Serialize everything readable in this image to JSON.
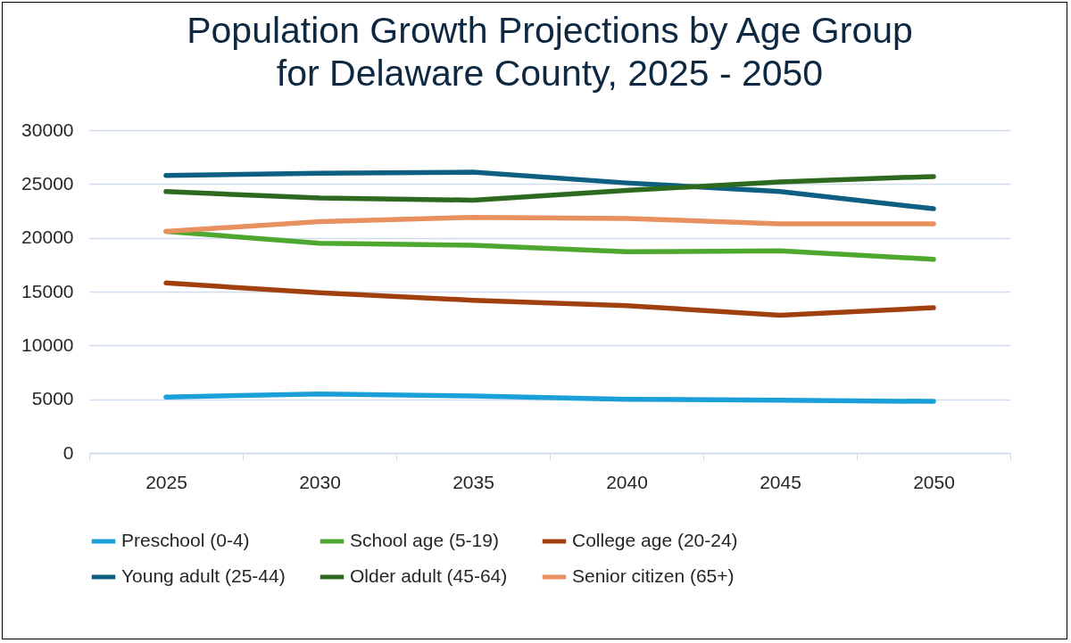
{
  "chart_data": {
    "type": "line",
    "title": "Population Growth Projections by Age Group\nfor Delaware County, 2025 - 2050",
    "categories": [
      "2025",
      "2030",
      "2035",
      "2040",
      "2045",
      "2050"
    ],
    "series": [
      {
        "name": "Preschool (0-4)",
        "color": "#1a9fd8",
        "values": [
          5200,
          5500,
          5300,
          5000,
          4900,
          4800
        ]
      },
      {
        "name": "School age (5-19)",
        "color": "#4ea72e",
        "values": [
          20600,
          19500,
          19300,
          18700,
          18800,
          18000
        ]
      },
      {
        "name": "College age (20-24)",
        "color": "#a0400f",
        "values": [
          15800,
          14900,
          14200,
          13700,
          12800,
          13500
        ]
      },
      {
        "name": "Young adult (25-44)",
        "color": "#0e5f81",
        "values": [
          25800,
          26000,
          26100,
          25100,
          24300,
          22700
        ]
      },
      {
        "name": "Older adult (45-64)",
        "color": "#2d6a1f",
        "values": [
          24300,
          23700,
          23500,
          24400,
          25200,
          25700
        ]
      },
      {
        "name": "Senior citizen (65+)",
        "color": "#e8905f",
        "values": [
          20600,
          21500,
          21900,
          21800,
          21300,
          21300
        ]
      }
    ],
    "ylim": [
      0,
      30000
    ],
    "yticks": [
      0,
      5000,
      10000,
      15000,
      20000,
      25000,
      30000
    ],
    "grid": "y",
    "legend": "bottom",
    "marker": "none",
    "line_style": "solid"
  }
}
